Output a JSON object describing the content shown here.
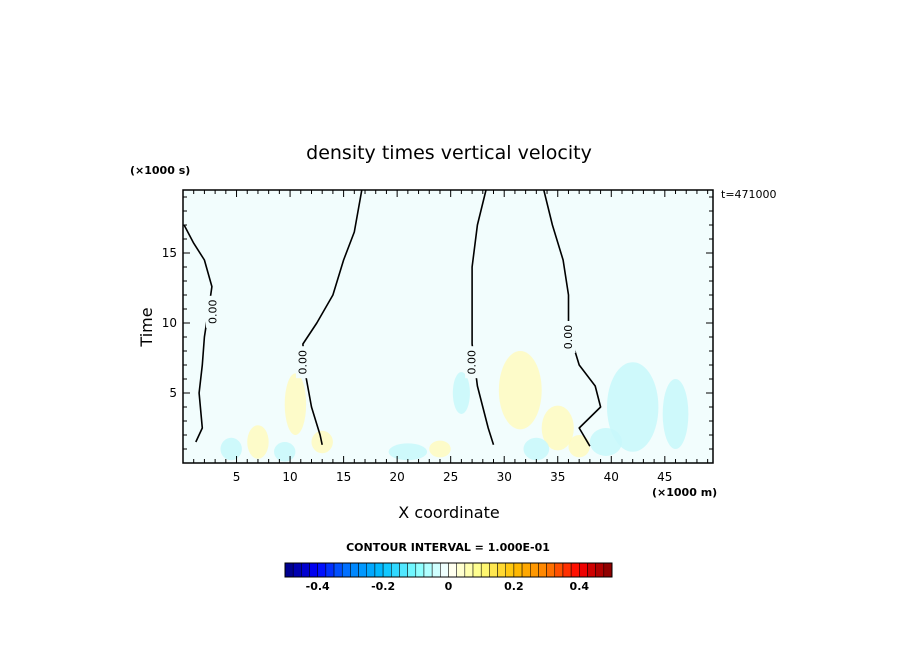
{
  "chart_data": {
    "type": "heatmap",
    "title": "density times vertical velocity",
    "xlabel": "X coordinate",
    "ylabel": "Time",
    "x_unit": "(×1000 m)",
    "y_unit": "(×1000 s)",
    "time_stamp": "t=471000",
    "xlim": [
      0,
      49.5
    ],
    "ylim": [
      0,
      19.5
    ],
    "x_ticks": [
      5,
      10,
      15,
      20,
      25,
      30,
      35,
      40,
      45
    ],
    "y_ticks": [
      5,
      10,
      15
    ],
    "contour_interval_text": "CONTOUR INTERVAL = 1.000E-01",
    "contour_label": "0.00",
    "colorbar": {
      "min": -0.5,
      "max": 0.5,
      "ticks": [
        -0.4,
        -0.2,
        0,
        0.2,
        0.4
      ],
      "tick_labels": [
        "-0.4",
        "-0.2",
        "0",
        "0.2",
        "0.4"
      ]
    },
    "zero_contours": [
      [
        [
          0.1,
          17.0
        ],
        [
          1.0,
          15.7
        ],
        [
          2.0,
          14.5
        ],
        [
          2.7,
          12.6
        ],
        [
          2.4,
          11.0
        ],
        [
          2.0,
          9.0
        ],
        [
          1.8,
          7.0
        ],
        [
          1.5,
          5.0
        ],
        [
          1.8,
          2.5
        ],
        [
          1.2,
          1.5
        ]
      ],
      [
        [
          16.7,
          19.5
        ],
        [
          16.0,
          16.5
        ],
        [
          15.0,
          14.5
        ],
        [
          14.0,
          12.0
        ],
        [
          12.5,
          10.0
        ],
        [
          11.2,
          8.5
        ],
        [
          11.4,
          6.5
        ],
        [
          12.0,
          4.0
        ],
        [
          12.8,
          2.0
        ],
        [
          13.0,
          1.3
        ]
      ],
      [
        [
          28.3,
          19.5
        ],
        [
          27.5,
          17.0
        ],
        [
          27.0,
          14.0
        ],
        [
          27.0,
          11.0
        ],
        [
          27.0,
          8.5
        ],
        [
          27.5,
          5.5
        ],
        [
          28.5,
          2.5
        ],
        [
          29.0,
          1.3
        ]
      ],
      [
        [
          33.7,
          19.5
        ],
        [
          34.5,
          17.0
        ],
        [
          35.5,
          14.5
        ],
        [
          36.0,
          12.0
        ],
        [
          36.0,
          9.5
        ],
        [
          37.0,
          7.0
        ],
        [
          38.5,
          5.5
        ],
        [
          39.0,
          4.0
        ],
        [
          37.0,
          2.5
        ],
        [
          38.0,
          1.2
        ]
      ]
    ],
    "anomalies": [
      {
        "x": 10.5,
        "y": 4.2,
        "rx": 1.0,
        "ry": 2.2,
        "value": 0.06
      },
      {
        "x": 13.0,
        "y": 1.5,
        "rx": 1.0,
        "ry": 0.8,
        "value": 0.07
      },
      {
        "x": 26.0,
        "y": 5.0,
        "rx": 0.8,
        "ry": 1.5,
        "value": -0.06
      },
      {
        "x": 31.5,
        "y": 5.2,
        "rx": 2.0,
        "ry": 2.8,
        "value": 0.09
      },
      {
        "x": 35.0,
        "y": 2.5,
        "rx": 1.5,
        "ry": 1.6,
        "value": 0.08
      },
      {
        "x": 42.0,
        "y": 4.0,
        "rx": 2.4,
        "ry": 3.2,
        "value": -0.1
      },
      {
        "x": 46.0,
        "y": 3.5,
        "rx": 1.2,
        "ry": 2.5,
        "value": -0.07
      },
      {
        "x": 4.5,
        "y": 1.0,
        "rx": 1.0,
        "ry": 0.8,
        "value": -0.08
      },
      {
        "x": 9.5,
        "y": 0.8,
        "rx": 1.0,
        "ry": 0.7,
        "value": -0.07
      },
      {
        "x": 21.0,
        "y": 0.8,
        "rx": 1.8,
        "ry": 0.6,
        "value": -0.06
      },
      {
        "x": 24.0,
        "y": 1.0,
        "rx": 1.0,
        "ry": 0.6,
        "value": 0.06
      },
      {
        "x": 33.0,
        "y": 1.0,
        "rx": 1.2,
        "ry": 0.8,
        "value": -0.07
      },
      {
        "x": 37.0,
        "y": 1.2,
        "rx": 1.0,
        "ry": 0.8,
        "value": 0.12
      },
      {
        "x": 39.5,
        "y": 1.5,
        "rx": 1.5,
        "ry": 1.0,
        "value": -0.08
      },
      {
        "x": 7.0,
        "y": 1.5,
        "rx": 1.0,
        "ry": 1.2,
        "value": 0.07
      }
    ],
    "colors": {
      "background": "#ffffff",
      "field": "#f2fdfd",
      "contour": "#000000",
      "colormap": [
        "#000080",
        "#0000ff",
        "#0080ff",
        "#00c0ff",
        "#80ffff",
        "#ffffff",
        "#ffff80",
        "#ffc000",
        "#ff8000",
        "#ff0000",
        "#800000"
      ]
    }
  }
}
